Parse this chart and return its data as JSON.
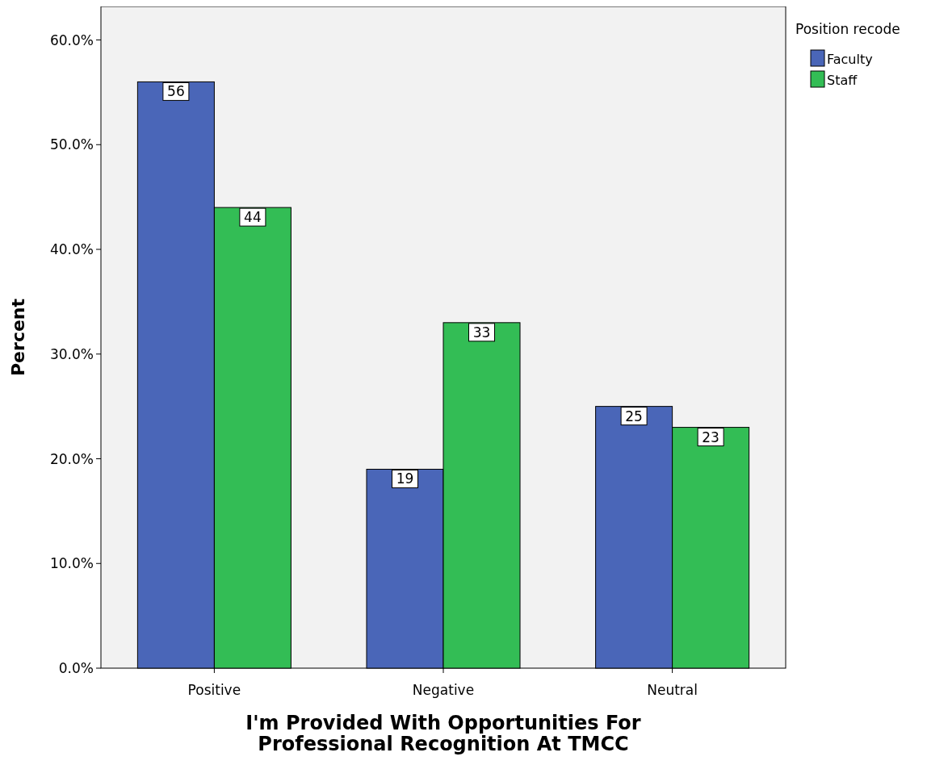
{
  "chart_data": {
    "type": "bar",
    "xlabel": "I'm Provided With Opportunities For Professional Recognition At TMCC",
    "ylabel": "Percent",
    "legend_title": "Position recode",
    "legend": "top right",
    "data_labels": true,
    "categories": [
      "Positive",
      "Negative",
      "Neutral"
    ],
    "series": [
      {
        "name": "Faculty",
        "color": "#4a66b8",
        "values": [
          56,
          19,
          25
        ]
      },
      {
        "name": "Staff",
        "color": "#33bd55",
        "values": [
          44,
          33,
          23
        ]
      }
    ],
    "ylim": [
      0,
      63.2
    ],
    "yticks": [
      {
        "value": 0,
        "label": "0.0%"
      },
      {
        "value": 10,
        "label": "10.0%"
      },
      {
        "value": 20,
        "label": "20.0%"
      },
      {
        "value": 30,
        "label": "30.0%"
      },
      {
        "value": 40,
        "label": "40.0%"
      },
      {
        "value": 50,
        "label": "50.0%"
      },
      {
        "value": 60,
        "label": "60.0%"
      }
    ]
  }
}
